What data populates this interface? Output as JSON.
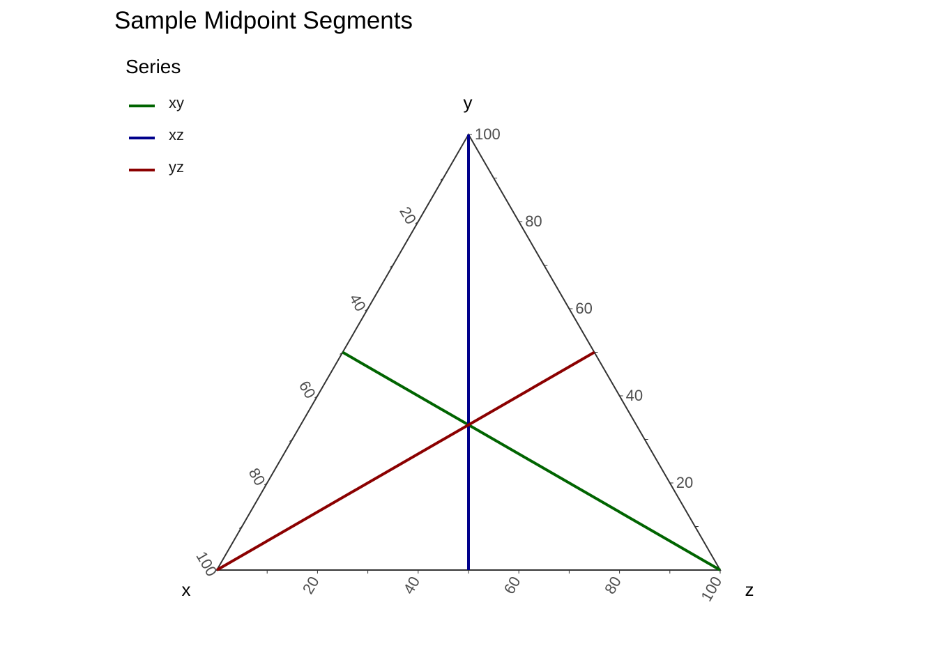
{
  "chart_data": {
    "type": "ternary",
    "title": "Sample Midpoint Segments",
    "axes": {
      "x": {
        "label": "x",
        "ticks": [
          "20",
          "40",
          "60",
          "80",
          "100"
        ]
      },
      "y": {
        "label": "y",
        "ticks": [
          "20",
          "40",
          "60",
          "80",
          "100"
        ]
      },
      "z": {
        "label": "z",
        "ticks": [
          "20",
          "40",
          "60",
          "80",
          "100"
        ]
      }
    },
    "legend": {
      "title": "Series",
      "placement": "top-left"
    },
    "grid": false,
    "series": [
      {
        "name": "xy",
        "color": "#006400",
        "points": [
          {
            "x": 50,
            "y": 50,
            "z": 0
          },
          {
            "x": 0,
            "y": 0,
            "z": 100
          }
        ]
      },
      {
        "name": "xz",
        "color": "#00008B",
        "points": [
          {
            "x": 50,
            "y": 0,
            "z": 50
          },
          {
            "x": 0,
            "y": 100,
            "z": 0
          }
        ]
      },
      {
        "name": "yz",
        "color": "#8B0000",
        "points": [
          {
            "x": 0,
            "y": 50,
            "z": 50
          },
          {
            "x": 100,
            "y": 0,
            "z": 0
          }
        ]
      }
    ]
  }
}
